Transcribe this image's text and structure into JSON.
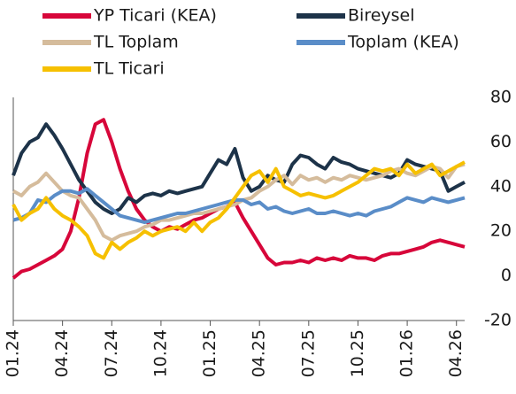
{
  "chart_data": {
    "type": "line",
    "categories": [
      "01.24",
      null,
      null,
      null,
      null,
      null,
      "04.24",
      null,
      null,
      null,
      null,
      null,
      "07.24",
      null,
      null,
      null,
      null,
      null,
      "10.24",
      null,
      null,
      null,
      null,
      null,
      "01.25",
      null,
      null,
      null,
      null,
      null,
      "04.25",
      null,
      null,
      null,
      null,
      null,
      "07.25",
      null,
      null,
      null,
      null,
      null,
      "10.25",
      null,
      null,
      null,
      null,
      null,
      "01.26",
      null,
      null,
      null,
      null,
      null,
      "04.26",
      null
    ],
    "series": [
      {
        "name": "YP Ticari (KEA)",
        "color": "#d7063a",
        "values": [
          -1,
          2,
          3,
          5,
          7,
          9,
          12,
          20,
          35,
          55,
          68,
          70,
          60,
          48,
          38,
          30,
          25,
          22,
          20,
          22,
          21,
          23,
          25,
          26,
          28,
          30,
          31,
          33,
          26,
          20,
          14,
          8,
          5,
          6,
          6,
          7,
          6,
          8,
          7,
          8,
          7,
          9,
          8,
          8,
          7,
          9,
          10,
          10,
          11,
          12,
          13,
          15,
          16,
          15,
          14,
          13
        ]
      },
      {
        "name": "Bireysel",
        "color": "#1d3349",
        "values": [
          45,
          55,
          60,
          62,
          68,
          63,
          57,
          50,
          43,
          38,
          33,
          30,
          28,
          30,
          35,
          33,
          36,
          37,
          36,
          38,
          37,
          38,
          39,
          40,
          46,
          52,
          50,
          57,
          44,
          38,
          40,
          45,
          43,
          42,
          50,
          54,
          53,
          50,
          48,
          53,
          51,
          50,
          48,
          47,
          46,
          45,
          44,
          46,
          52,
          50,
          49,
          48,
          47,
          38,
          40,
          42
        ]
      },
      {
        "name": "TL Toplam",
        "color": "#d5bc9c",
        "values": [
          38,
          36,
          40,
          42,
          46,
          42,
          38,
          36,
          35,
          30,
          25,
          18,
          16,
          18,
          19,
          20,
          22,
          23,
          25,
          25,
          26,
          27,
          28,
          28,
          29,
          30,
          31,
          32,
          34,
          35,
          38,
          40,
          43,
          45,
          41,
          45,
          43,
          44,
          42,
          44,
          43,
          45,
          44,
          43,
          44,
          45,
          47,
          48,
          46,
          45,
          47,
          49,
          48,
          44,
          49,
          50
        ]
      },
      {
        "name": "Toplam (KEA)",
        "color": "#5a8dc8",
        "values": [
          25,
          26,
          28,
          34,
          33,
          36,
          38,
          38,
          37,
          39,
          36,
          33,
          30,
          27,
          26,
          25,
          24,
          25,
          26,
          27,
          28,
          28,
          29,
          30,
          31,
          32,
          33,
          34,
          34,
          32,
          33,
          30,
          31,
          29,
          28,
          29,
          30,
          28,
          28,
          29,
          28,
          27,
          28,
          27,
          29,
          30,
          31,
          33,
          35,
          34,
          33,
          35,
          34,
          33,
          34,
          35
        ]
      },
      {
        "name": "TL Ticari",
        "color": "#f6c000",
        "values": [
          32,
          25,
          28,
          30,
          35,
          30,
          27,
          25,
          22,
          18,
          10,
          8,
          15,
          12,
          15,
          17,
          20,
          18,
          20,
          21,
          22,
          20,
          24,
          20,
          24,
          26,
          30,
          35,
          40,
          45,
          47,
          42,
          48,
          40,
          38,
          36,
          37,
          36,
          35,
          36,
          38,
          40,
          42,
          45,
          48,
          47,
          48,
          45,
          50,
          46,
          48,
          50,
          45,
          47,
          49,
          51
        ]
      }
    ],
    "ylim": [
      -20,
      80
    ],
    "yticks": [
      -20,
      0,
      20,
      40,
      60,
      80
    ]
  }
}
